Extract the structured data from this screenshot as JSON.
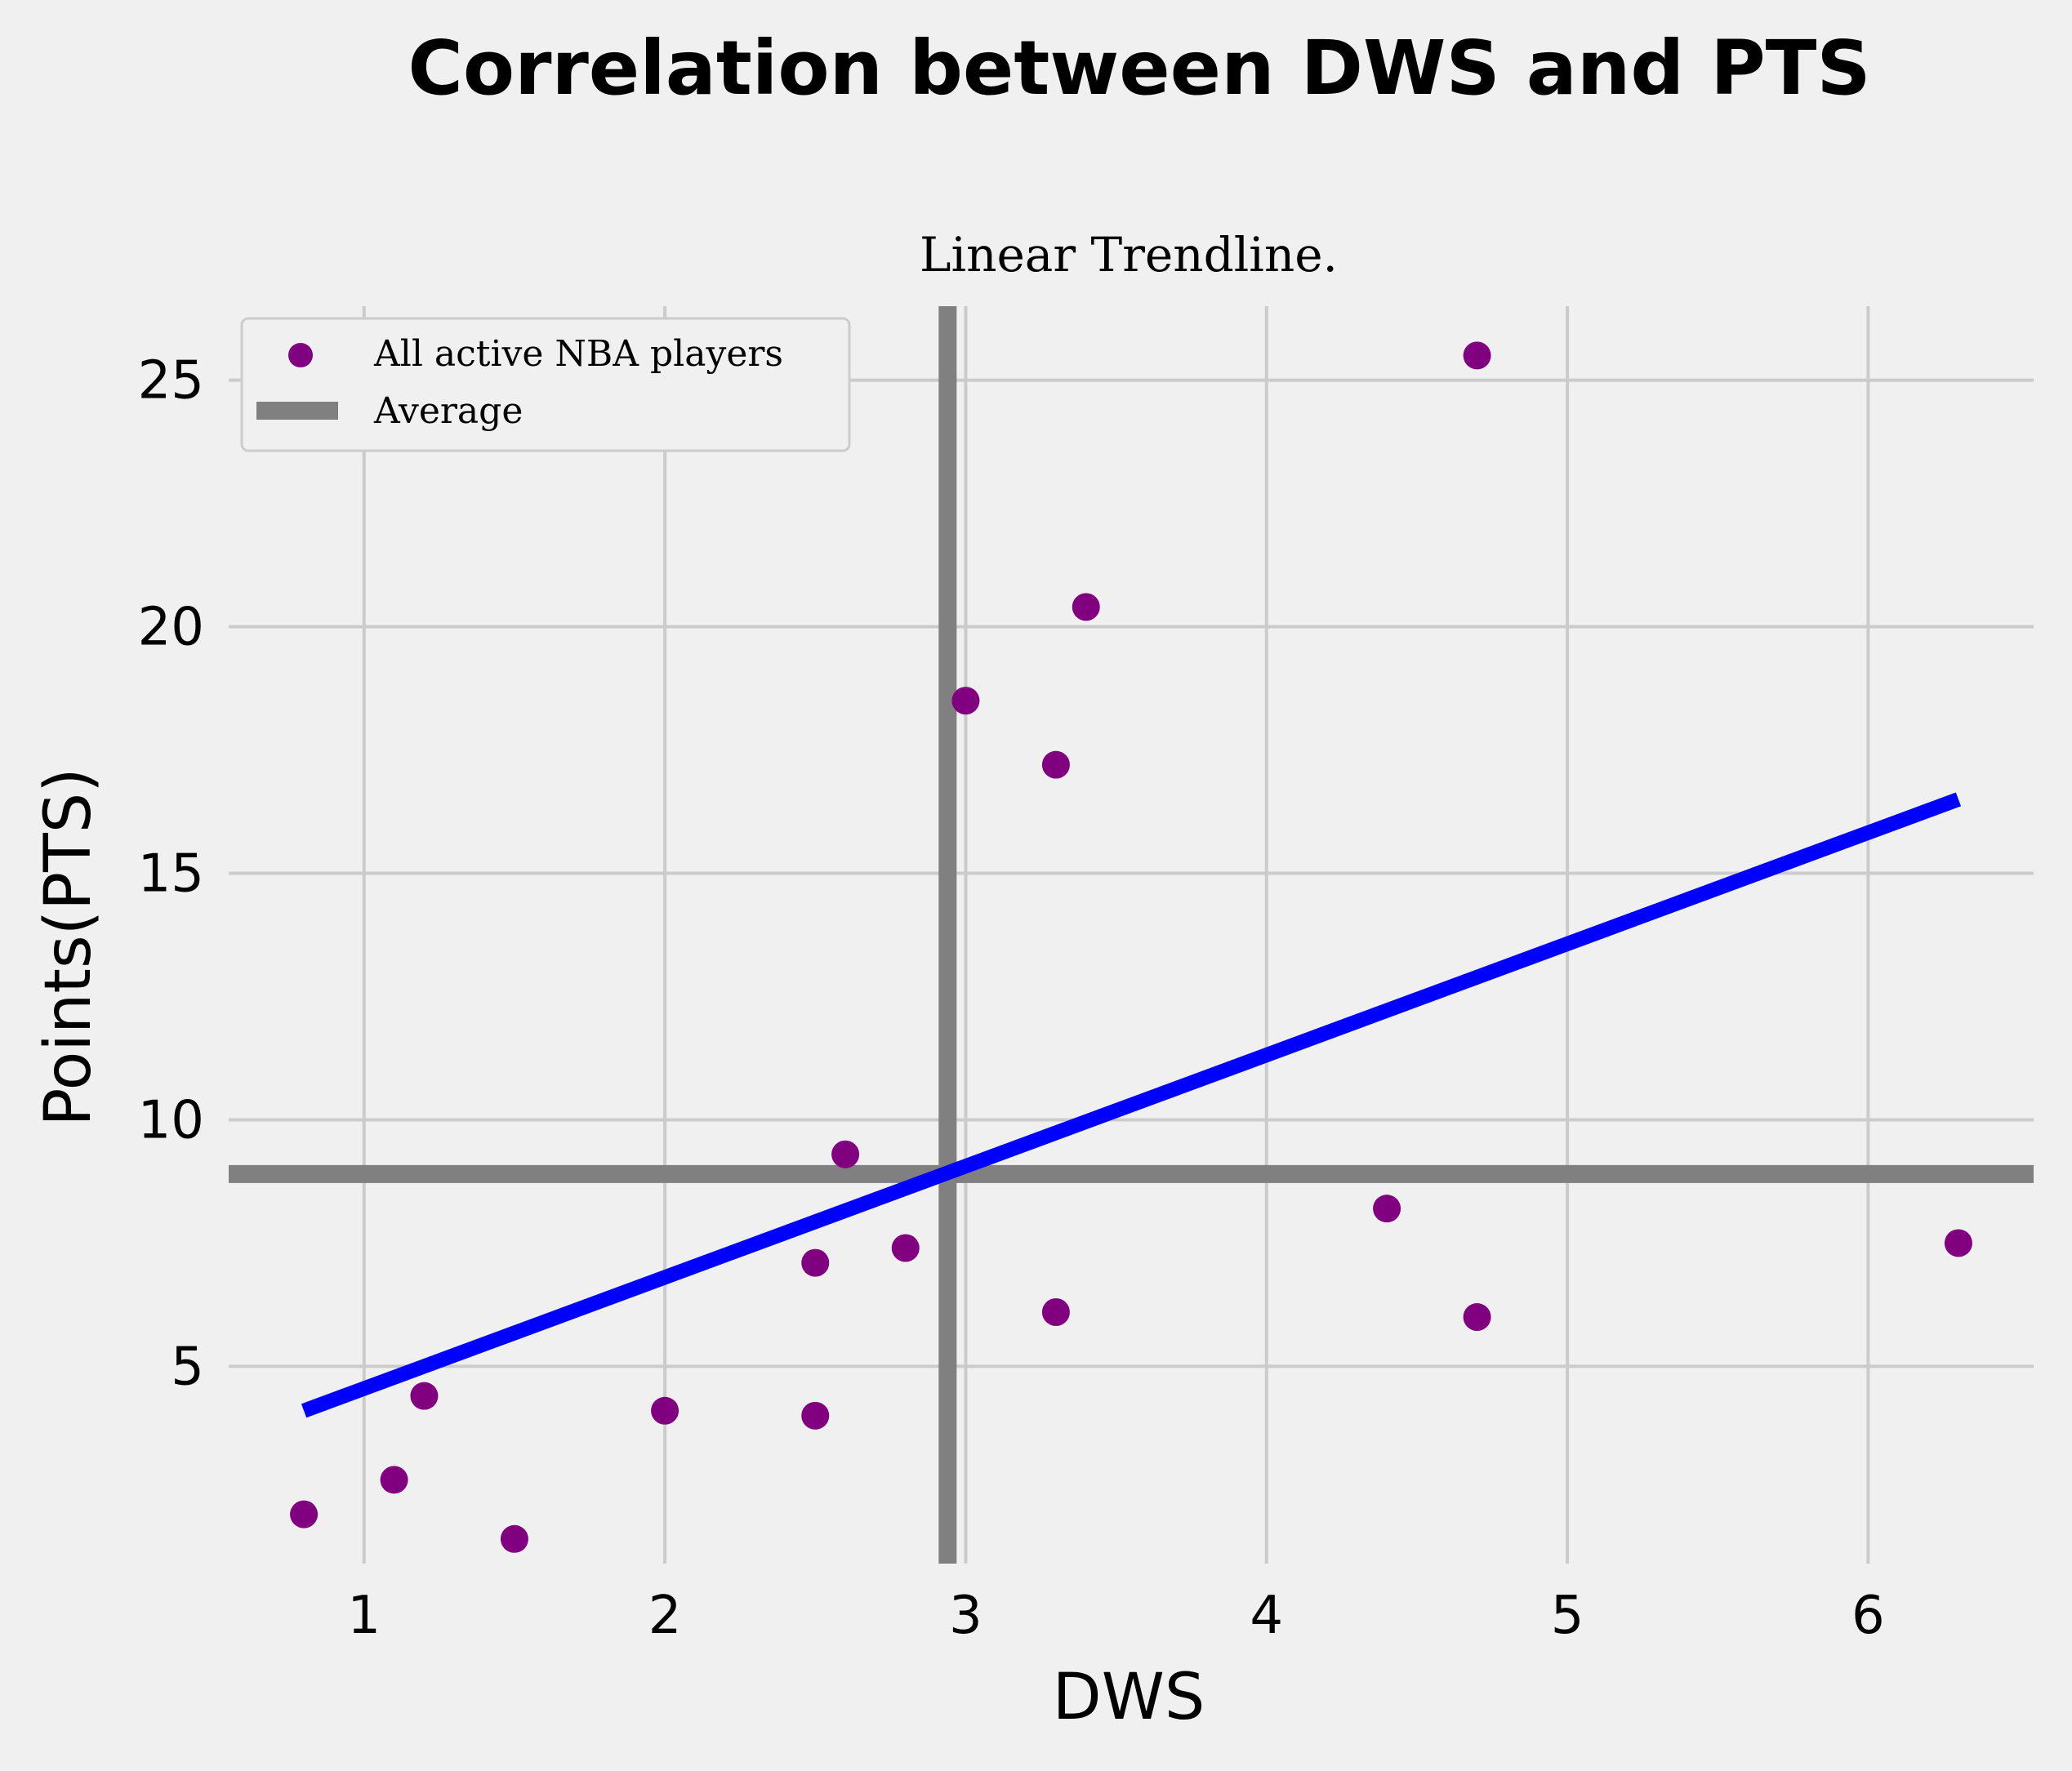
{
  "chart_data": {
    "type": "scatter",
    "title": "Correlation between DWS and PTS",
    "subtitle": "Linear Trendline.",
    "xlabel": "DWS",
    "ylabel": "Points(PTS)",
    "xlim": [
      0.55,
      6.55
    ],
    "ylim": [
      1.0,
      26.5
    ],
    "xticks": [
      1,
      2,
      3,
      4,
      5,
      6
    ],
    "yticks": [
      5,
      10,
      15,
      20,
      25
    ],
    "grid": true,
    "legend_position": "top-left",
    "colors": {
      "points": "#800080",
      "trendline": "#0000ff",
      "average": "#808080",
      "background": "#f0f0f0"
    },
    "series": [
      {
        "name": "All active NBA players",
        "points": [
          {
            "x": 0.8,
            "y": 2.0
          },
          {
            "x": 1.1,
            "y": 2.7
          },
          {
            "x": 1.2,
            "y": 4.4
          },
          {
            "x": 1.5,
            "y": 1.5
          },
          {
            "x": 2.0,
            "y": 4.1
          },
          {
            "x": 2.5,
            "y": 4.0
          },
          {
            "x": 2.5,
            "y": 7.1
          },
          {
            "x": 2.6,
            "y": 9.3
          },
          {
            "x": 2.8,
            "y": 7.4
          },
          {
            "x": 3.0,
            "y": 18.5
          },
          {
            "x": 3.3,
            "y": 17.2
          },
          {
            "x": 3.3,
            "y": 6.1
          },
          {
            "x": 3.4,
            "y": 20.4
          },
          {
            "x": 4.4,
            "y": 8.2
          },
          {
            "x": 4.7,
            "y": 25.5
          },
          {
            "x": 4.7,
            "y": 6.0
          },
          {
            "x": 6.3,
            "y": 7.5
          }
        ]
      }
    ],
    "trendline": {
      "x": [
        0.8,
        6.3
      ],
      "y": [
        4.1,
        16.5
      ]
    },
    "average": {
      "name": "Average",
      "x": 2.94,
      "y": 8.9
    }
  }
}
